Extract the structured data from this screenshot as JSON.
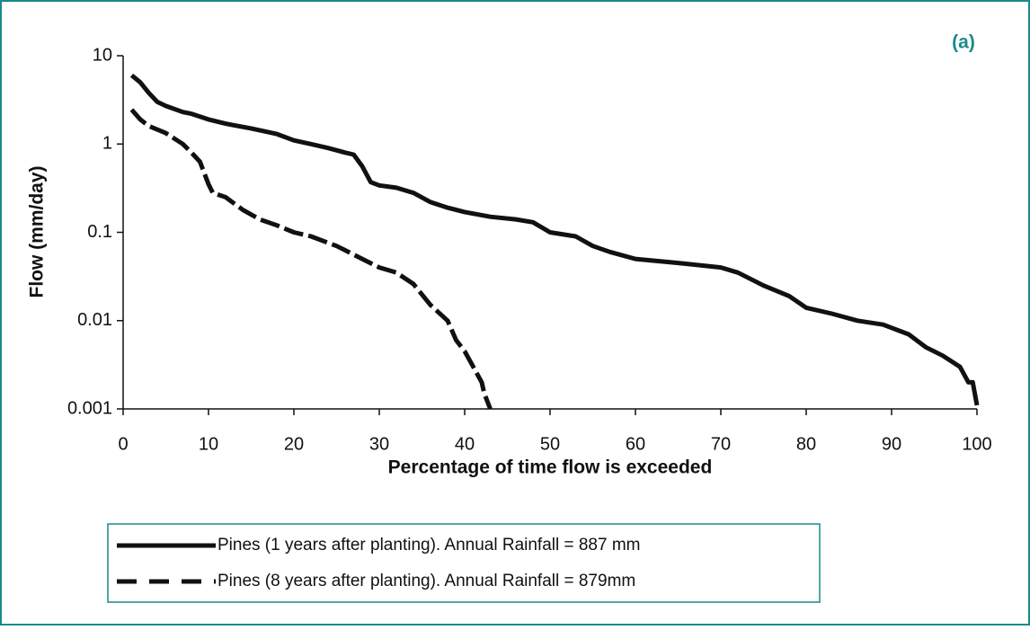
{
  "chart_data": {
    "type": "line",
    "annotation": "(a)",
    "x_label": "Percentage of time flow is exceeded",
    "y_label": "Flow (mm/day)",
    "log_y": true,
    "xlim": [
      0,
      100
    ],
    "xticks": [
      0,
      10,
      20,
      30,
      40,
      50,
      60,
      70,
      80,
      90,
      100
    ],
    "ylim": [
      0.001,
      10
    ],
    "yticks": [
      10,
      1,
      0.1,
      0.01,
      0.001
    ],
    "series": [
      {
        "name": "Pines (1 years after planting). Annual Rainfall = 887 mm",
        "color": "#111111",
        "line_style": "solid",
        "x": [
          1,
          2,
          3,
          4,
          5,
          7,
          8,
          10,
          12,
          15,
          18,
          20,
          22,
          24,
          26,
          27,
          28,
          29,
          30,
          32,
          34,
          36,
          38,
          40,
          43,
          46,
          48,
          50,
          53,
          55,
          57,
          60,
          65,
          70,
          72,
          75,
          78,
          80,
          83,
          86,
          89,
          92,
          94,
          96,
          98,
          99,
          99.5,
          100
        ],
        "values": [
          6,
          5,
          3.8,
          3,
          2.7,
          2.3,
          2.2,
          1.9,
          1.7,
          1.5,
          1.3,
          1.1,
          1,
          0.9,
          0.8,
          0.76,
          0.56,
          0.37,
          0.34,
          0.32,
          0.28,
          0.22,
          0.19,
          0.17,
          0.15,
          0.14,
          0.13,
          0.1,
          0.09,
          0.07,
          0.06,
          0.05,
          0.045,
          0.04,
          0.035,
          0.025,
          0.019,
          0.014,
          0.012,
          0.01,
          0.009,
          0.007,
          0.005,
          0.004,
          0.003,
          0.002,
          0.002,
          0.0011
        ]
      },
      {
        "name": "Pines (8 years after planting). Annual Rainfall = 879mm",
        "color": "#111111",
        "line_style": "dashed",
        "x": [
          1,
          2,
          3,
          5,
          7,
          8,
          9,
          10,
          10.5,
          12,
          14,
          16,
          18,
          20,
          22,
          25,
          28,
          30,
          32,
          34,
          36,
          38,
          39,
          40,
          41,
          42,
          42.3,
          43
        ],
        "values": [
          2.45,
          1.9,
          1.6,
          1.33,
          1,
          0.8,
          0.63,
          0.35,
          0.28,
          0.25,
          0.18,
          0.14,
          0.12,
          0.1,
          0.09,
          0.07,
          0.05,
          0.04,
          0.035,
          0.026,
          0.015,
          0.01,
          0.006,
          0.0045,
          0.003,
          0.002,
          0.0015,
          0.001
        ]
      }
    ]
  }
}
